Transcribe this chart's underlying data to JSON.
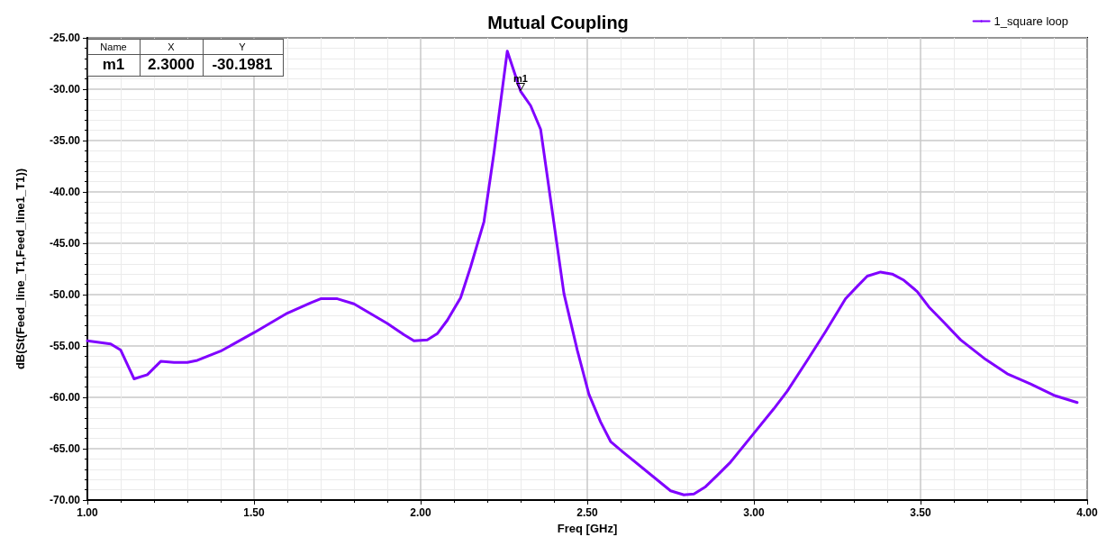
{
  "chart_data": {
    "type": "line",
    "title": "Mutual Coupling",
    "xlabel": "Freq [GHz]",
    "ylabel": "dB(St(Feed_line_T1,Feed_line1_T1))",
    "xlim": [
      1,
      4
    ],
    "ylim": [
      -70,
      -25
    ],
    "xticks": [
      {
        "value": 1,
        "label": "1.00"
      },
      {
        "value": 1.5,
        "label": "1.50"
      },
      {
        "value": 2,
        "label": "2.00"
      },
      {
        "value": 2.5,
        "label": "2.50"
      },
      {
        "value": 3,
        "label": "3.00"
      },
      {
        "value": 3.5,
        "label": "3.50"
      },
      {
        "value": 4,
        "label": "4.00"
      }
    ],
    "yticks": [
      {
        "value": -70,
        "label": "-70.00"
      },
      {
        "value": -65,
        "label": "-65.00"
      },
      {
        "value": -60,
        "label": "-60.00"
      },
      {
        "value": -55,
        "label": "-55.00"
      },
      {
        "value": -50,
        "label": "-50.00"
      },
      {
        "value": -45,
        "label": "-45.00"
      },
      {
        "value": -40,
        "label": "-40.00"
      },
      {
        "value": -35,
        "label": "-35.00"
      },
      {
        "value": -30,
        "label": "-30.00"
      },
      {
        "value": -25,
        "label": "-25.00"
      }
    ],
    "grid": true,
    "legend": "top right",
    "marker": "none",
    "line_style": "solid",
    "annotations": [
      "Name",
      "X",
      "Y",
      "m1",
      "2.3000",
      "-30.1981",
      {
        "text": "m1",
        "x": 2.3,
        "y": -30.1981
      }
    ],
    "series": [
      {
        "name": "1_square loop",
        "color": "#8000ff",
        "x": [
          1.0,
          1.07,
          1.1,
          1.14,
          1.18,
          1.22,
          1.26,
          1.3,
          1.33,
          1.4,
          1.5,
          1.6,
          1.67,
          1.7,
          1.75,
          1.8,
          1.9,
          1.95,
          1.98,
          2.02,
          2.05,
          2.08,
          2.12,
          2.15,
          2.19,
          2.22,
          2.26,
          2.3,
          2.33,
          2.36,
          2.43,
          2.47,
          2.505,
          2.54,
          2.57,
          2.61,
          2.75,
          2.79,
          2.82,
          2.855,
          2.89,
          2.93,
          3.0,
          3.06,
          3.1,
          3.16,
          3.215,
          3.275,
          3.31,
          3.34,
          3.38,
          3.415,
          3.45,
          3.49,
          3.525,
          3.57,
          3.62,
          3.695,
          3.76,
          3.83,
          3.9,
          3.97
        ],
        "values": [
          -54.5,
          -54.8,
          -55.4,
          -58.2,
          -57.8,
          -56.5,
          -56.6,
          -56.6,
          -56.4,
          -55.5,
          -53.7,
          -51.8,
          -50.8,
          -50.4,
          -50.4,
          -50.9,
          -52.8,
          -53.9,
          -54.5,
          -54.4,
          -53.8,
          -52.5,
          -50.3,
          -47.3,
          -42.9,
          -36.2,
          -26.3,
          -30.2,
          -31.6,
          -33.9,
          -49.9,
          -55.4,
          -59.7,
          -62.4,
          -64.3,
          -65.4,
          -69.1,
          -69.5,
          -69.4,
          -68.7,
          -67.6,
          -66.3,
          -63.5,
          -61.1,
          -59.4,
          -56.4,
          -53.6,
          -50.4,
          -49.2,
          -48.2,
          -47.8,
          -48.0,
          -48.6,
          -49.7,
          -51.2,
          -52.7,
          -54.4,
          -56.3,
          -57.7,
          -58.7,
          -59.8,
          -60.5
        ]
      }
    ]
  }
}
